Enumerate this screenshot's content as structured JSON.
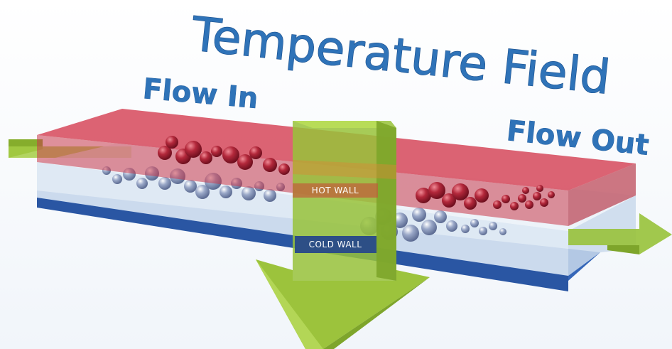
{
  "title": "Temperature Field",
  "labels": {
    "flow_in": "Flow In",
    "flow_out": "Flow Out",
    "hot_wall": "HOT WALL",
    "cold_wall": "COLD WALL"
  },
  "colors": {
    "hot": "#c9394a",
    "cold": "#2f5fb0",
    "fluid": "#d9e8f5",
    "arrow": "#9cc33c",
    "title": "#2f73b8"
  }
}
